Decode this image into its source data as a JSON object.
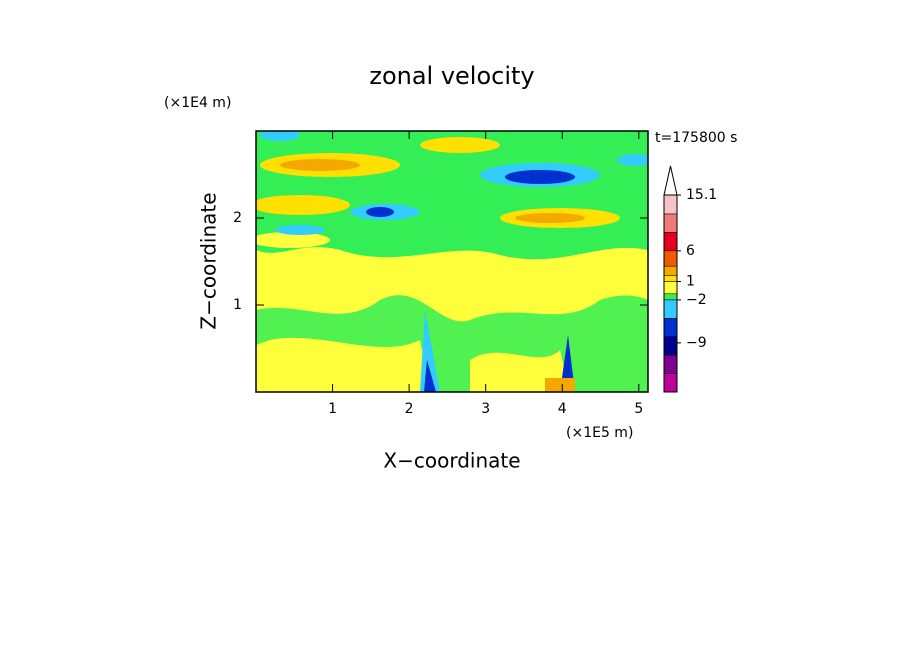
{
  "chart_data": {
    "type": "contourf",
    "title": "zonal velocity",
    "xlabel": "X−coordinate",
    "ylabel": "Z−coordinate",
    "x_unit": "(×1E5 m)",
    "y_unit": "(×1E4 m)",
    "annotation": "t=175800 s",
    "xlim": [
      0,
      5.12
    ],
    "ylim": [
      0,
      3
    ],
    "xticks": [
      1,
      2,
      3,
      4,
      5
    ],
    "yticks": [
      1,
      2
    ],
    "colorbar": {
      "levels": [
        15.1,
        12,
        9,
        6,
        3.5,
        2,
        1,
        -1,
        -2,
        -5,
        -8,
        -11,
        -14,
        -17
      ],
      "colors": [
        "#f7c3c3",
        "#f07a7a",
        "#e6001e",
        "#f05a00",
        "#f5a800",
        "#ffe000",
        "#ffff3c",
        "#33ee55",
        "#33ccff",
        "#0030d0",
        "#000090",
        "#800090",
        "#c0009c",
        "#ff40c0"
      ],
      "extend_color": "#ffffff",
      "ticks": [
        15.1,
        6,
        1,
        {
          "value": -2,
          "label": "−2"
        },
        {
          "value": -9,
          "label": "−9"
        }
      ]
    }
  }
}
